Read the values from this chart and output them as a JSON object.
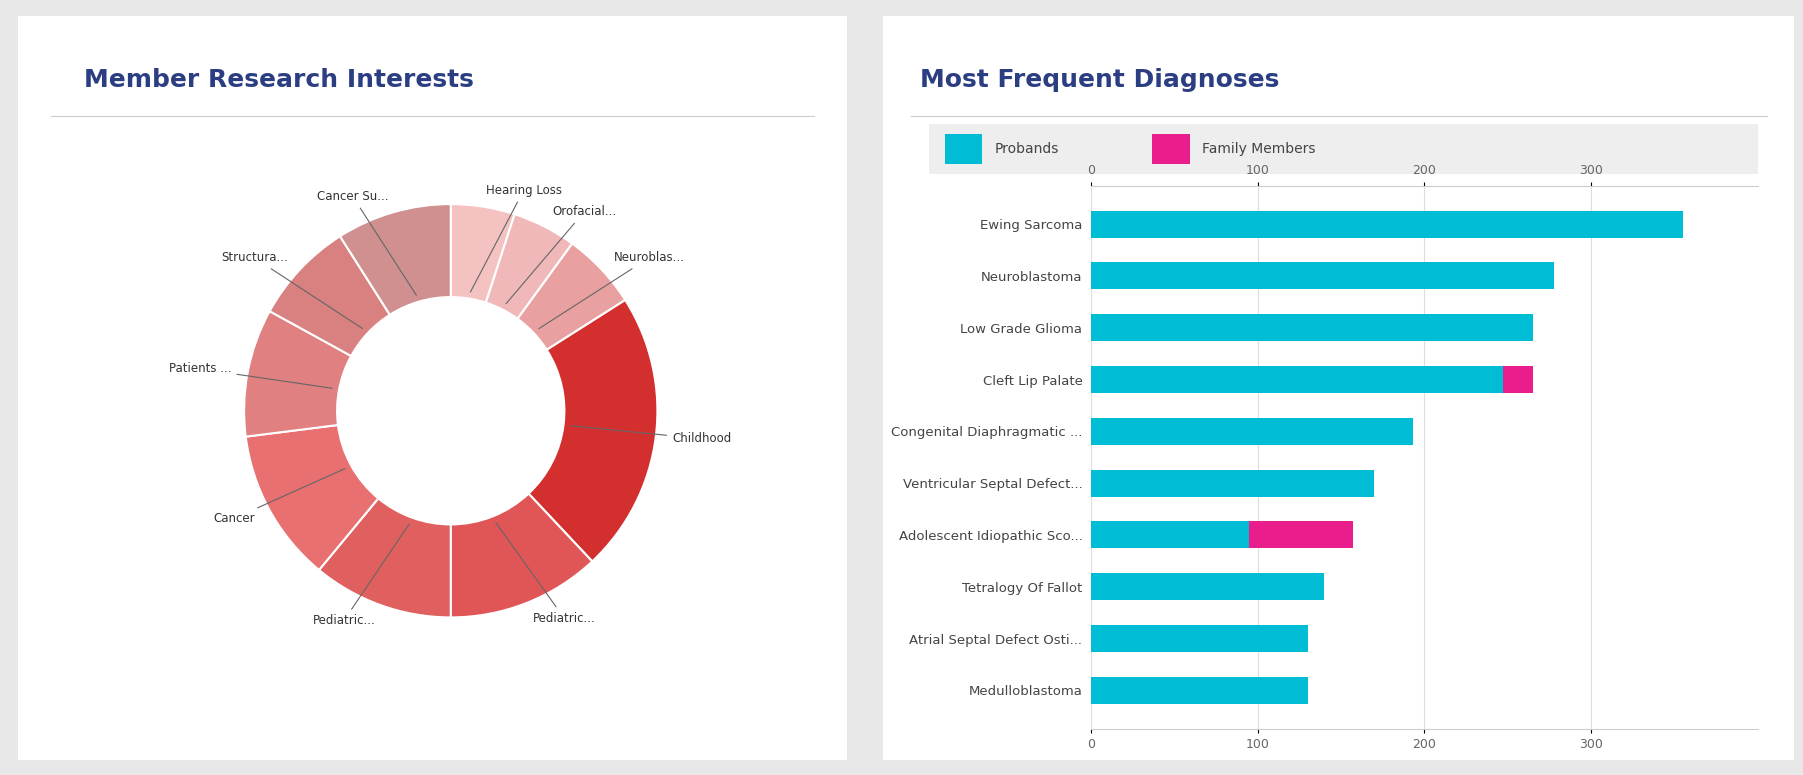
{
  "left_title": "Member Research Interests",
  "right_title": "Most Frequent Diagnoses",
  "pie_labels": [
    "Hearing Loss",
    "Orofacial...",
    "Neuroblas...",
    "Childhood",
    "Pediatric...",
    "Pediatric...",
    "Cancer",
    "Patients ...",
    "Structura...",
    "Cancer Su..."
  ],
  "pie_sizes": [
    5,
    5,
    6,
    22,
    12,
    11,
    12,
    10,
    8,
    9
  ],
  "pie_colors": [
    "#f5c2c2",
    "#f0b8b8",
    "#e8a0a0",
    "#d32f2f",
    "#e05555",
    "#e06060",
    "#e87070",
    "#e08080",
    "#d98080",
    "#d09090"
  ],
  "diagnoses": [
    "Ewing Sarcoma",
    "Neuroblastoma",
    "Low Grade Glioma",
    "Cleft Lip Palate",
    "Congenital Diaphragmatic ...",
    "Ventricular Septal Defect...",
    "Adolescent Idiopathic Sco...",
    "Tetralogy Of Fallot",
    "Atrial Septal Defect Osti...",
    "Medulloblastoma"
  ],
  "probands": [
    355,
    278,
    265,
    247,
    193,
    170,
    95,
    140,
    130,
    130
  ],
  "family_members": [
    0,
    0,
    0,
    18,
    0,
    0,
    62,
    0,
    0,
    0
  ],
  "proband_color": "#00bcd4",
  "family_color": "#e91e8c",
  "x_ticks": [
    0,
    100,
    200,
    300
  ],
  "background_color": "#ffffff",
  "title_color": "#2c3e82",
  "label_color": "#333333",
  "outer_bg": "#e8e8e8"
}
